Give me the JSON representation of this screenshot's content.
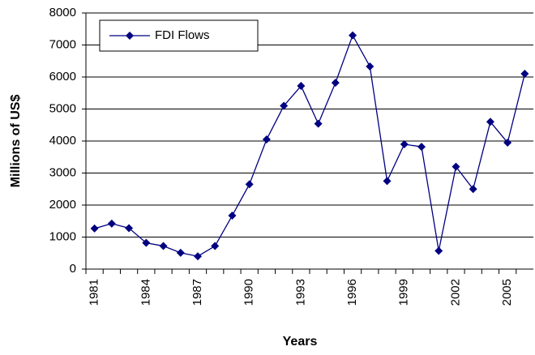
{
  "chart_data": {
    "type": "line",
    "x_label": "Years",
    "y_label": "Millions of US$",
    "categories": [
      "1981",
      null,
      null,
      "1984",
      null,
      null,
      "1987",
      null,
      null,
      "1990",
      null,
      null,
      "1993",
      null,
      null,
      "1996",
      null,
      null,
      "1999",
      null,
      null,
      "2002",
      null,
      null,
      "2005",
      null
    ],
    "series": [
      {
        "name": "FDI Flows",
        "color": "#000080",
        "values": [
          1270,
          1420,
          1280,
          820,
          720,
          510,
          400,
          720,
          1670,
          2650,
          4050,
          5100,
          5720,
          4540,
          5820,
          7300,
          6330,
          2750,
          3900,
          3820,
          570,
          3200,
          2500,
          4600,
          3950,
          6100
        ]
      }
    ],
    "ylim": [
      0,
      8000
    ],
    "yticks": [
      0,
      1000,
      2000,
      3000,
      4000,
      5000,
      6000,
      7000,
      8000
    ],
    "grid": true,
    "legend": "top-left"
  }
}
